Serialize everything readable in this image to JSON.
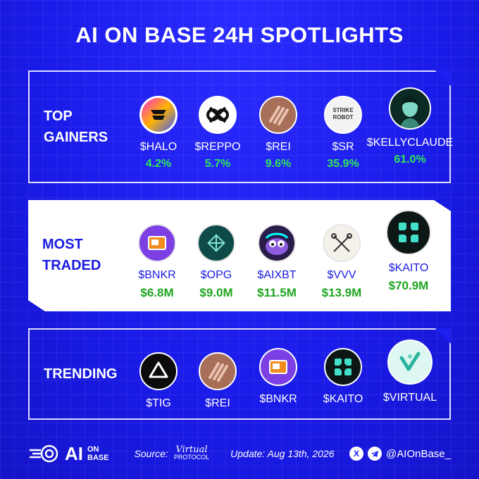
{
  "title": "AI ON BASE 24H SPOTLIGHTS",
  "sections": {
    "top_gainers": {
      "label_line1": "TOP",
      "label_line2": "GAINERS",
      "tokens": [
        {
          "name": "$HALO",
          "value": "4.2%",
          "icon": "halo-logo"
        },
        {
          "name": "$REPPO",
          "value": "5.7%",
          "icon": "reppo-logo"
        },
        {
          "name": "$REI",
          "value": "9.6%",
          "icon": "rei-logo"
        },
        {
          "name": "$SR",
          "value": "35.9%",
          "icon": "strike-robot-logo",
          "logo_text_1": "STRIKE",
          "logo_text_2": "ROBOT"
        },
        {
          "name": "$KELLYCLAUDE",
          "value": "61.0%",
          "icon": "kellyclaude-avatar"
        }
      ]
    },
    "most_traded": {
      "label_line1": "MOST",
      "label_line2": "TRADED",
      "tokens": [
        {
          "name": "$BNKR",
          "value": "$6.8M",
          "icon": "bnkr-logo"
        },
        {
          "name": "$OPG",
          "value": "$9.0M",
          "icon": "opg-logo"
        },
        {
          "name": "$AIXBT",
          "value": "$11.5M",
          "icon": "aixbt-logo"
        },
        {
          "name": "$VVV",
          "value": "$13.9M",
          "icon": "vvv-logo"
        },
        {
          "name": "$KAITO",
          "value": "$70.9M",
          "icon": "kaito-logo"
        }
      ]
    },
    "trending": {
      "label": "TRENDING",
      "tokens": [
        {
          "name": "$TIG",
          "icon": "tig-logo"
        },
        {
          "name": "$REI",
          "icon": "rei-logo"
        },
        {
          "name": "$BNKR",
          "icon": "bnkr-logo"
        },
        {
          "name": "$KAITO",
          "icon": "kaito-logo"
        },
        {
          "name": "$VIRTUAL",
          "icon": "virtual-logo"
        }
      ]
    }
  },
  "footer": {
    "brand_ai": "AI",
    "brand_on": "ON",
    "brand_base": "BASE",
    "source_label": "Source:",
    "source_name": "Virtual",
    "source_sub": "PROTOCOL",
    "update": "Update: Aug 13th, 2026",
    "handle": "@AIOnBase_"
  },
  "colors": {
    "background": "#1d1ef0",
    "positive_on_dark": "#2ee85a",
    "positive_on_light": "#1fa51f",
    "accent_text_on_light": "#1a1be0"
  }
}
